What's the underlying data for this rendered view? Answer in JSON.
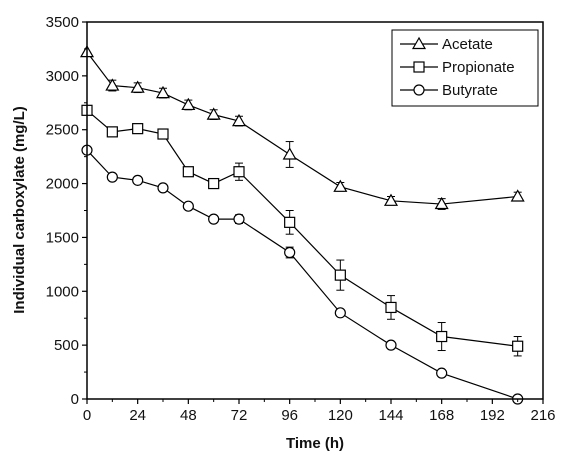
{
  "chart_data": {
    "type": "line",
    "title": "",
    "xlabel": "Time (h)",
    "ylabel": "Individual carboxylate (mg/L)",
    "xlim": [
      0,
      216
    ],
    "ylim": [
      0,
      3500
    ],
    "x_ticks": [
      0,
      24,
      48,
      72,
      96,
      120,
      144,
      168,
      192,
      216
    ],
    "y_ticks": [
      0,
      500,
      1000,
      1500,
      2000,
      2500,
      3000,
      3500
    ],
    "grid": false,
    "legend_position": "top-right",
    "series": [
      {
        "name": "Acetate",
        "marker": "triangle",
        "points": [
          {
            "x": 0,
            "y": 3220,
            "err": 0
          },
          {
            "x": 12,
            "y": 2910,
            "err": 50
          },
          {
            "x": 24,
            "y": 2890,
            "err": 45
          },
          {
            "x": 36,
            "y": 2840,
            "err": 45
          },
          {
            "x": 48,
            "y": 2730,
            "err": 45
          },
          {
            "x": 60,
            "y": 2640,
            "err": 45
          },
          {
            "x": 72,
            "y": 2580,
            "err": 45
          },
          {
            "x": 96,
            "y": 2270,
            "err": 120
          },
          {
            "x": 120,
            "y": 1970,
            "err": 40
          },
          {
            "x": 144,
            "y": 1840,
            "err": 40
          },
          {
            "x": 168,
            "y": 1810,
            "err": 50
          },
          {
            "x": 204,
            "y": 1880,
            "err": 40
          }
        ]
      },
      {
        "name": "Propionate",
        "marker": "square",
        "points": [
          {
            "x": 0,
            "y": 2680,
            "err": 0
          },
          {
            "x": 12,
            "y": 2480,
            "err": 30
          },
          {
            "x": 24,
            "y": 2510,
            "err": 30
          },
          {
            "x": 36,
            "y": 2460,
            "err": 30
          },
          {
            "x": 48,
            "y": 2110,
            "err": 30
          },
          {
            "x": 60,
            "y": 2000,
            "err": 30
          },
          {
            "x": 72,
            "y": 2110,
            "err": 80
          },
          {
            "x": 96,
            "y": 1640,
            "err": 110
          },
          {
            "x": 120,
            "y": 1150,
            "err": 140
          },
          {
            "x": 144,
            "y": 850,
            "err": 110
          },
          {
            "x": 168,
            "y": 580,
            "err": 130
          },
          {
            "x": 204,
            "y": 490,
            "err": 90
          }
        ]
      },
      {
        "name": "Butyrate",
        "marker": "circle",
        "points": [
          {
            "x": 0,
            "y": 2310,
            "err": 0
          },
          {
            "x": 12,
            "y": 2060,
            "err": 30
          },
          {
            "x": 24,
            "y": 2030,
            "err": 30
          },
          {
            "x": 36,
            "y": 1960,
            "err": 30
          },
          {
            "x": 48,
            "y": 1790,
            "err": 30
          },
          {
            "x": 60,
            "y": 1670,
            "err": 30
          },
          {
            "x": 72,
            "y": 1670,
            "err": 40
          },
          {
            "x": 96,
            "y": 1360,
            "err": 50
          },
          {
            "x": 120,
            "y": 800,
            "err": 30
          },
          {
            "x": 144,
            "y": 500,
            "err": 30
          },
          {
            "x": 168,
            "y": 240,
            "err": 30
          },
          {
            "x": 204,
            "y": 0,
            "err": 0
          }
        ]
      }
    ]
  }
}
